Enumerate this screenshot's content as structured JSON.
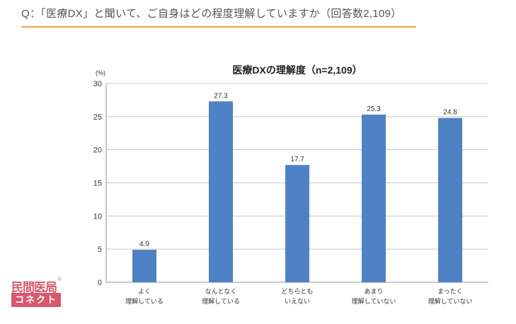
{
  "question": "Q：「医療DX」と聞いて、ご自身はどの程度理解していますか（回答数2,109）",
  "logo": {
    "top_text": "民間医局",
    "bottom_text": "コネクト",
    "registered_mark": "®",
    "color": "#d8586e"
  },
  "accent_color": "#f0a24a",
  "chart_data": {
    "type": "bar",
    "title": "医療DXの理解度（n=2,109）",
    "ylabel": "(%)",
    "xlabel": "",
    "ylim": [
      0,
      30
    ],
    "yticks": [
      0,
      5,
      10,
      15,
      20,
      25,
      30
    ],
    "grid": true,
    "bar_color": "#4f82c4",
    "categories": [
      [
        "よく",
        "理解している"
      ],
      [
        "なんとなく",
        "理解している"
      ],
      [
        "どちらとも",
        "いえない"
      ],
      [
        "あまり",
        "理解していない"
      ],
      [
        "まったく",
        "理解していない"
      ]
    ],
    "values": [
      4.9,
      27.3,
      17.7,
      25.3,
      24.8
    ],
    "value_labels": [
      "4.9",
      "27.3",
      "17.7",
      "25.3",
      "24.8"
    ]
  }
}
